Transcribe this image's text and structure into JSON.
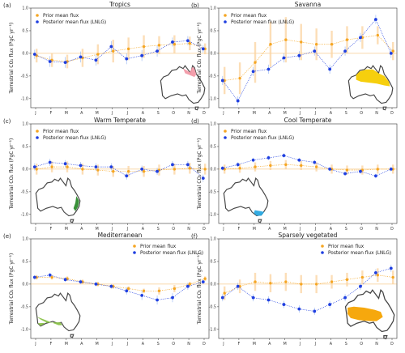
{
  "colors": {
    "prior": "#f5a623",
    "prior_err": "#fbd3a0",
    "posterior": "#1f3fe0",
    "posterior_err": "#7fa6f0",
    "zero_line": "#f0a030",
    "map_fill": "#ffffff",
    "map_outline": "#444444"
  },
  "icons": {
    "map_inset": "australia-map-icon"
  },
  "chart_data": [
    {
      "type": "line",
      "panel_label": "(a)",
      "title": "Tropics",
      "ylabel": "Terrestrial CO$_2$ flux (PgC yr$^{-1}$)",
      "ylabel_display": "Terrestrial CO₂ flux (PgC yr⁻¹)",
      "categories": [
        "J",
        "F",
        "M",
        "A",
        "M",
        "J",
        "J",
        "A",
        "S",
        "O",
        "N",
        "D"
      ],
      "ylim": [
        -1.2,
        1.0
      ],
      "yticks": [
        "-1.0",
        "-0.5",
        "0.0",
        "0.5",
        "1.0"
      ],
      "grid": false,
      "legend_position": "top-left",
      "region_color": "#f29aa8",
      "series": [
        {
          "name": "Prior mean flux",
          "values": [
            -0.05,
            -0.15,
            -0.18,
            -0.1,
            -0.02,
            0.05,
            0.1,
            0.15,
            0.18,
            0.2,
            0.22,
            0.1
          ],
          "err": [
            0.15,
            0.15,
            0.15,
            0.2,
            0.22,
            0.25,
            0.25,
            0.25,
            0.2,
            0.2,
            0.15,
            0.12
          ]
        },
        {
          "name": "Posterior mean flux (LNLG)",
          "values": [
            -0.02,
            -0.18,
            -0.2,
            -0.08,
            -0.15,
            0.15,
            -0.12,
            -0.05,
            0.05,
            0.25,
            0.28,
            0.1
          ],
          "err": [
            0.1,
            0.12,
            0.12,
            0.12,
            0.12,
            0.12,
            0.12,
            0.12,
            0.12,
            0.1,
            0.1,
            0.08
          ]
        }
      ]
    },
    {
      "type": "line",
      "panel_label": "(b)",
      "title": "Savanna",
      "ylabel": "Terrestrial CO$_2$ flux (PgC yr$^{-1}$)",
      "ylabel_display": "Terrestrial CO₂ flux (PgC yr⁻¹)",
      "categories": [
        "J",
        "F",
        "M",
        "A",
        "M",
        "J",
        "J",
        "A",
        "S",
        "O",
        "N",
        "D"
      ],
      "ylim": [
        -1.2,
        1.0
      ],
      "yticks": [
        "-1.0",
        "-0.5",
        "0.0",
        "0.5",
        "1.0"
      ],
      "grid": false,
      "legend_position": "top-left",
      "region_color": "#f5cc00",
      "series": [
        {
          "name": "Prior mean flux",
          "values": [
            -0.6,
            -0.55,
            -0.2,
            0.2,
            0.3,
            0.25,
            0.2,
            0.2,
            0.3,
            0.35,
            0.4,
            0.05
          ],
          "err": [
            0.3,
            0.35,
            0.45,
            0.5,
            0.5,
            0.4,
            0.35,
            0.3,
            0.3,
            0.25,
            0.2,
            0.2
          ]
        },
        {
          "name": "Posterior mean flux (LNLG)",
          "values": [
            -0.6,
            -1.05,
            -0.4,
            -0.35,
            -0.1,
            -0.05,
            0.05,
            -0.35,
            0.05,
            0.35,
            0.75,
            0.0
          ],
          "err": [
            0.1,
            0.1,
            0.1,
            0.1,
            0.1,
            0.1,
            0.1,
            0.1,
            0.1,
            0.1,
            0.1,
            0.1
          ]
        }
      ]
    },
    {
      "type": "line",
      "panel_label": "(c)",
      "title": "Warm Temperate",
      "ylabel": "Terrestrial CO$_2$ flux (PgC yr$^{-1}$)",
      "ylabel_display": "Terrestrial CO₂ flux (PgC yr⁻¹)",
      "categories": [
        "J",
        "F",
        "M",
        "A",
        "M",
        "J",
        "J",
        "A",
        "S",
        "O",
        "N",
        "D"
      ],
      "ylim": [
        -1.2,
        1.0
      ],
      "yticks": [
        "-1.0",
        "-0.5",
        "0.0",
        "0.5",
        "1.0"
      ],
      "grid": false,
      "legend_position": "top-left",
      "region_color": "#2e8b2e",
      "series": [
        {
          "name": "Prior mean flux",
          "values": [
            0.0,
            0.05,
            0.05,
            0.0,
            -0.02,
            -0.05,
            -0.05,
            -0.05,
            -0.02,
            0.0,
            0.02,
            0.0
          ],
          "err": [
            0.12,
            0.12,
            0.12,
            0.12,
            0.12,
            0.12,
            0.12,
            0.12,
            0.12,
            0.12,
            0.12,
            0.12
          ]
        },
        {
          "name": "Posterior mean flux (LNLG)",
          "values": [
            0.05,
            0.15,
            0.12,
            0.08,
            0.05,
            0.05,
            -0.15,
            0.0,
            -0.05,
            0.1,
            0.1,
            -0.2
          ],
          "err": [
            0.08,
            0.08,
            0.08,
            0.08,
            0.08,
            0.08,
            0.08,
            0.08,
            0.08,
            0.08,
            0.08,
            0.08
          ]
        }
      ]
    },
    {
      "type": "line",
      "panel_label": "(d)",
      "title": "Cool Temperate",
      "ylabel": "Terrestrial CO$_2$ flux (PgC yr$^{-1}$)",
      "ylabel_display": "Terrestrial CO₂ flux (PgC yr⁻¹)",
      "categories": [
        "J",
        "F",
        "M",
        "A",
        "M",
        "J",
        "J",
        "A",
        "S",
        "O",
        "N",
        "D"
      ],
      "ylim": [
        -1.2,
        1.0
      ],
      "yticks": [
        "-1.0",
        "-0.5",
        "0.0",
        "0.5",
        "1.0"
      ],
      "grid": false,
      "legend_position": "top-left",
      "region_color": "#29a8e0",
      "series": [
        {
          "name": "Prior mean flux",
          "values": [
            0.0,
            0.02,
            0.05,
            0.08,
            0.1,
            0.08,
            0.05,
            0.0,
            -0.02,
            -0.02,
            0.0,
            0.0
          ],
          "err": [
            0.1,
            0.1,
            0.1,
            0.1,
            0.1,
            0.1,
            0.1,
            0.1,
            0.1,
            0.1,
            0.1,
            0.1
          ]
        },
        {
          "name": "Posterior mean flux (LNLG)",
          "values": [
            0.02,
            0.1,
            0.2,
            0.25,
            0.3,
            0.2,
            0.15,
            0.0,
            -0.1,
            -0.05,
            -0.15,
            0.0
          ],
          "err": [
            0.05,
            0.05,
            0.05,
            0.05,
            0.05,
            0.05,
            0.05,
            0.05,
            0.05,
            0.05,
            0.05,
            0.05
          ]
        }
      ]
    },
    {
      "type": "line",
      "panel_label": "(e)",
      "title": "Mediterranean",
      "ylabel": "Terrestrial CO$_2$ flux (PgC yr$^{-1}$)",
      "ylabel_display": "Terrestrial CO₂ flux (PgC yr⁻¹)",
      "categories": [
        "J",
        "F",
        "M",
        "A",
        "M",
        "J",
        "J",
        "A",
        "S",
        "O",
        "N",
        "D"
      ],
      "ylim": [
        -1.2,
        1.0
      ],
      "yticks": [
        "-1.0",
        "-0.5",
        "0.0",
        "0.5",
        "1.0"
      ],
      "grid": false,
      "legend_position": "top-right",
      "region_color": "#8bc34a",
      "series": [
        {
          "name": "Prior mean flux",
          "values": [
            0.15,
            0.15,
            0.12,
            0.05,
            0.0,
            -0.05,
            -0.1,
            -0.15,
            -0.15,
            -0.1,
            0.0,
            0.12
          ],
          "err": [
            0.05,
            0.05,
            0.05,
            0.05,
            0.05,
            0.05,
            0.05,
            0.05,
            0.08,
            0.08,
            0.05,
            0.05
          ]
        },
        {
          "name": "Posterior mean flux (LNLG)",
          "values": [
            0.15,
            0.2,
            0.1,
            0.05,
            0.0,
            -0.05,
            -0.15,
            -0.25,
            -0.35,
            -0.3,
            -0.05,
            0.05
          ],
          "err": [
            0.05,
            0.05,
            0.05,
            0.05,
            0.05,
            0.05,
            0.08,
            0.1,
            0.1,
            0.1,
            0.08,
            0.05
          ]
        }
      ]
    },
    {
      "type": "line",
      "panel_label": "(f)",
      "title": "Sparsely vegetated",
      "ylabel": "Terrestrial CO$_2$ flux (PgC yr$^{-1}$)",
      "ylabel_display": "Terrestrial CO₂ flux (PgC yr⁻¹)",
      "categories": [
        "J",
        "F",
        "M",
        "A",
        "M",
        "J",
        "J",
        "A",
        "S",
        "O",
        "N",
        "D"
      ],
      "ylim": [
        -1.2,
        1.0
      ],
      "yticks": [
        "-1.0",
        "-0.5",
        "0.0",
        "0.5",
        "1.0"
      ],
      "grid": false,
      "legend_position": "top-right",
      "region_color": "#f5a300",
      "series": [
        {
          "name": "Prior mean flux",
          "values": [
            -0.2,
            -0.05,
            0.05,
            0.02,
            0.05,
            0.0,
            0.0,
            0.05,
            0.1,
            0.15,
            0.2,
            0.15
          ],
          "err": [
            0.15,
            0.15,
            0.2,
            0.2,
            0.2,
            0.2,
            0.2,
            0.15,
            0.15,
            0.15,
            0.15,
            0.15
          ]
        },
        {
          "name": "Posterior mean flux (LNLG)",
          "values": [
            -0.3,
            -0.05,
            -0.3,
            -0.35,
            -0.45,
            -0.55,
            -0.6,
            -0.45,
            -0.3,
            -0.05,
            0.25,
            0.35
          ],
          "err": [
            0.08,
            0.08,
            0.08,
            0.08,
            0.08,
            0.08,
            0.08,
            0.08,
            0.08,
            0.08,
            0.08,
            0.08
          ]
        }
      ]
    }
  ]
}
